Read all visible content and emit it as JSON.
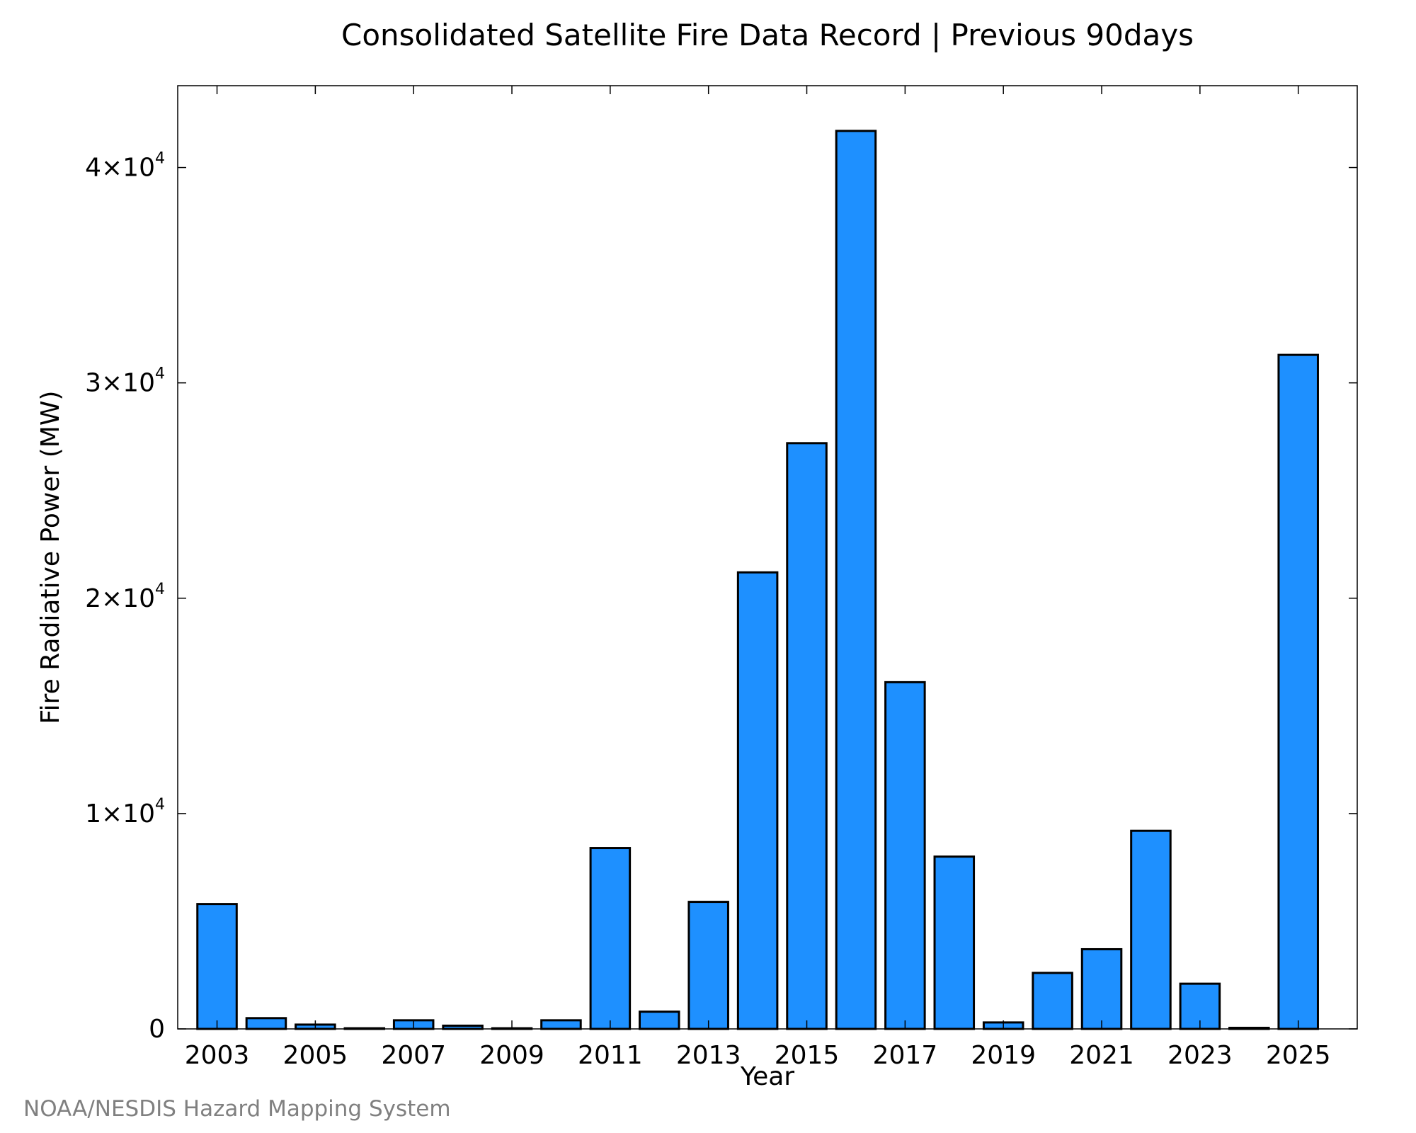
{
  "chart_data": {
    "type": "bar",
    "title": "Consolidated Satellite Fire Data Record | Previous 90days",
    "xlabel": "Year",
    "ylabel": "Fire Radiative Power (MW)",
    "categories": [
      2003,
      2004,
      2005,
      2006,
      2007,
      2008,
      2009,
      2010,
      2011,
      2012,
      2013,
      2014,
      2015,
      2016,
      2017,
      2018,
      2019,
      2020,
      2021,
      2022,
      2023,
      2024,
      2025
    ],
    "values": [
      5800,
      500,
      200,
      30,
      400,
      150,
      30,
      400,
      8400,
      800,
      5900,
      21200,
      27200,
      41700,
      16100,
      8000,
      300,
      2600,
      3700,
      9200,
      2100,
      50,
      31300
    ],
    "x_tick_labels": [
      "2003",
      "2005",
      "2007",
      "2009",
      "2011",
      "2013",
      "2015",
      "2017",
      "2019",
      "2021",
      "2023",
      "2025"
    ],
    "y_ticks": [
      {
        "value": 0,
        "label": "0"
      },
      {
        "value": 10000,
        "mantissa": "1×10",
        "exponent": "4"
      },
      {
        "value": 20000,
        "mantissa": "2×10",
        "exponent": "4"
      },
      {
        "value": 30000,
        "mantissa": "3×10",
        "exponent": "4"
      },
      {
        "value": 40000,
        "mantissa": "4×10",
        "exponent": "4"
      }
    ],
    "xlim": [
      2002.2,
      2026.2
    ],
    "ylim": [
      0,
      43800
    ],
    "grid": false,
    "bar_color": "#1E90FF",
    "edge_color": "#000000"
  },
  "credit": "NOAA/NESDIS Hazard Mapping System"
}
